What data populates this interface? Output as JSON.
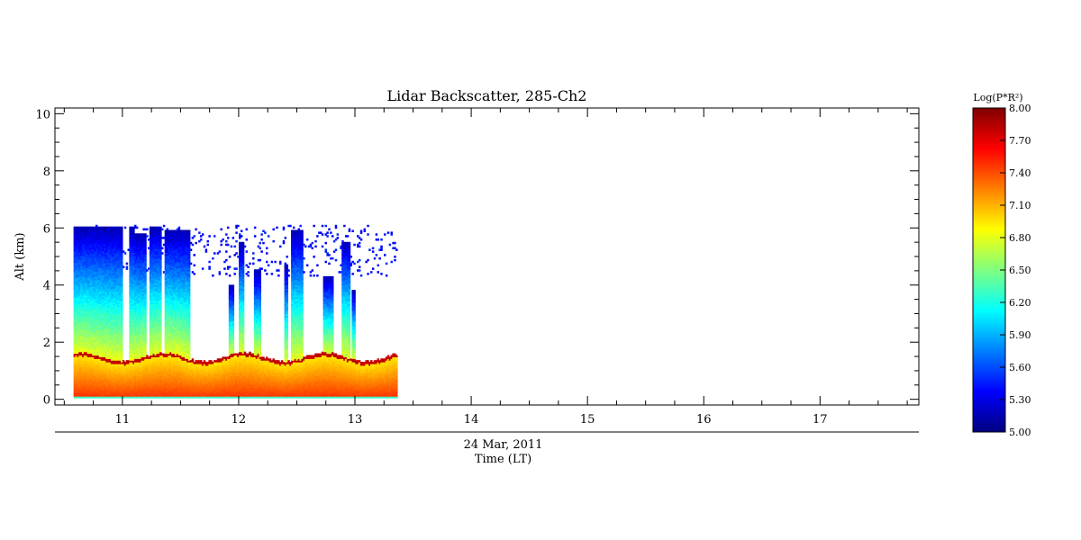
{
  "chart_data": {
    "type": "heatmap",
    "title": "Lidar Backscatter, 285-Ch2",
    "xlabel_date": "24 Mar, 2011",
    "xlabel": "Time (LT)",
    "ylabel": "Alt (km)",
    "xlim": [
      10.42,
      17.85
    ],
    "ylim": [
      -0.2,
      10.2
    ],
    "x_ticks": [
      11,
      12,
      13,
      14,
      15,
      16,
      17
    ],
    "x_tick_labels": [
      "11",
      "12",
      "13",
      "14",
      "15",
      "16",
      "17"
    ],
    "y_ticks": [
      0,
      2,
      4,
      6,
      8,
      10
    ],
    "y_tick_labels": [
      "0",
      "2",
      "4",
      "6",
      "8",
      "10"
    ],
    "data_time_range": [
      10.58,
      13.35
    ],
    "data_alt_range": [
      0.05,
      6.05
    ],
    "boundary_layer_top_km": 1.35,
    "colorbar": {
      "label": "Log(P*R²)",
      "range": [
        5.0,
        8.0
      ],
      "tick_labels": [
        "5.00",
        "5.30",
        "5.60",
        "5.90",
        "6.20",
        "6.50",
        "6.80",
        "7.10",
        "7.40",
        "7.70",
        "8.00"
      ],
      "colormap": [
        "#00007f",
        "#0000ff",
        "#007fff",
        "#00ffff",
        "#7fff7f",
        "#ffff00",
        "#ff7f00",
        "#ff0000",
        "#7f0000"
      ]
    }
  }
}
